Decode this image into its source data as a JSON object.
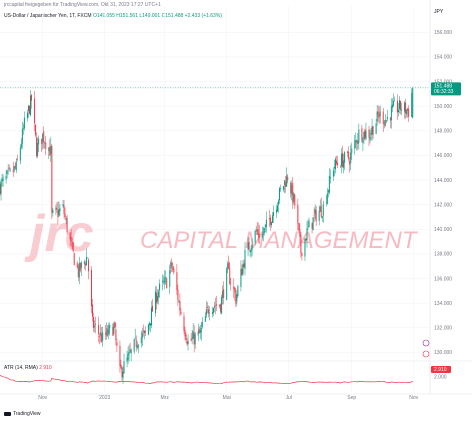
{
  "header": {
    "publish_text": "jrccapital freigegeben für TradingView.com, Okt 31, 2023 17:27 UTC+1"
  },
  "legend": {
    "symbol_text": "US-Dollar / Japanischer Yen, 1T, FXCM",
    "ohlc_text": "O149.055 H151.561 L149.001 C151.488 +2.433 (+1.63%)"
  },
  "atr": {
    "label": "ATR (14, RMA)",
    "value_text": "2.910"
  },
  "watermark": {
    "logo_text": "jrc",
    "company_text": "CAPITAL MANAGEMENT"
  },
  "footer": {
    "brand_text": "TradingView"
  },
  "price_tags": {
    "last_price": "151.488",
    "countdown": "06:32:33",
    "atr_tag": "2.910"
  },
  "colors": {
    "up": "#089981",
    "down": "#f23645",
    "watermark": "#f5a4ae",
    "grid": "#f0f3fa",
    "text": "#787b86"
  },
  "chart_data": {
    "type": "candlestick",
    "currency_label": "JPY",
    "y_ticks": [
      "156.000",
      "154.000",
      "152.000",
      "150.000",
      "148.000",
      "146.000",
      "144.000",
      "142.000",
      "140.000",
      "138.000",
      "136.000",
      "134.000",
      "132.000",
      "130.000"
    ],
    "ylim": [
      129.3,
      157
    ],
    "x_ticks": [
      "Nov",
      "2023",
      "Mrz",
      "Mai",
      "Jul",
      "Sep",
      "Nov"
    ],
    "x_tick_dates": [
      "2022-11-01",
      "2023-01-01",
      "2023-03-01",
      "2023-05-01",
      "2023-07-01",
      "2023-09-01",
      "2023-11-01"
    ],
    "x_range": [
      "2022-09-20",
      "2023-11-17"
    ],
    "last_close": 151.488,
    "anchor_points": [
      {
        "date": "2022-09-20",
        "close": 143.5
      },
      {
        "date": "2022-09-28",
        "close": 144.3
      },
      {
        "date": "2022-10-06",
        "close": 145.0
      },
      {
        "date": "2022-10-14",
        "close": 148.5
      },
      {
        "date": "2022-10-21",
        "close": 150.5
      },
      {
        "date": "2022-10-26",
        "close": 146.5
      },
      {
        "date": "2022-11-01",
        "close": 147.6
      },
      {
        "date": "2022-11-09",
        "close": 146.3
      },
      {
        "date": "2022-11-10",
        "close": 141.0
      },
      {
        "date": "2022-11-21",
        "close": 141.7
      },
      {
        "date": "2022-11-30",
        "close": 138.2
      },
      {
        "date": "2022-12-06",
        "close": 136.5
      },
      {
        "date": "2022-12-15",
        "close": 137.8
      },
      {
        "date": "2022-12-20",
        "close": 132.3
      },
      {
        "date": "2022-12-30",
        "close": 131.1
      },
      {
        "date": "2023-01-10",
        "close": 132.1
      },
      {
        "date": "2023-01-16",
        "close": 128.3
      },
      {
        "date": "2023-01-25",
        "close": 129.6
      },
      {
        "date": "2023-02-03",
        "close": 131.2
      },
      {
        "date": "2023-02-10",
        "close": 131.4
      },
      {
        "date": "2023-02-22",
        "close": 134.9
      },
      {
        "date": "2023-03-03",
        "close": 135.8
      },
      {
        "date": "2023-03-08",
        "close": 137.1
      },
      {
        "date": "2023-03-16",
        "close": 133.6
      },
      {
        "date": "2023-03-24",
        "close": 130.8
      },
      {
        "date": "2023-04-05",
        "close": 131.5
      },
      {
        "date": "2023-04-14",
        "close": 133.8
      },
      {
        "date": "2023-04-25",
        "close": 133.9
      },
      {
        "date": "2023-05-02",
        "close": 136.6
      },
      {
        "date": "2023-05-10",
        "close": 134.4
      },
      {
        "date": "2023-05-19",
        "close": 137.9
      },
      {
        "date": "2023-05-30",
        "close": 139.8
      },
      {
        "date": "2023-06-05",
        "close": 139.5
      },
      {
        "date": "2023-06-15",
        "close": 141.3
      },
      {
        "date": "2023-06-25",
        "close": 143.5
      },
      {
        "date": "2023-06-30",
        "close": 144.3
      },
      {
        "date": "2023-07-07",
        "close": 142.0
      },
      {
        "date": "2023-07-13",
        "close": 138.2
      },
      {
        "date": "2023-07-20",
        "close": 140.0
      },
      {
        "date": "2023-07-28",
        "close": 141.2
      },
      {
        "date": "2023-08-04",
        "close": 141.8
      },
      {
        "date": "2023-08-14",
        "close": 145.1
      },
      {
        "date": "2023-08-22",
        "close": 145.6
      },
      {
        "date": "2023-08-30",
        "close": 145.8
      },
      {
        "date": "2023-09-08",
        "close": 147.8
      },
      {
        "date": "2023-09-19",
        "close": 147.8
      },
      {
        "date": "2023-09-28",
        "close": 149.3
      },
      {
        "date": "2023-10-05",
        "close": 148.9
      },
      {
        "date": "2023-10-12",
        "close": 149.8
      },
      {
        "date": "2023-10-20",
        "close": 149.9
      },
      {
        "date": "2023-10-27",
        "close": 149.6
      },
      {
        "date": "2023-10-31",
        "close": 151.488
      }
    ],
    "atr_ylim": [
      0,
      4
    ],
    "atr_ticks": [
      "2.000"
    ]
  }
}
